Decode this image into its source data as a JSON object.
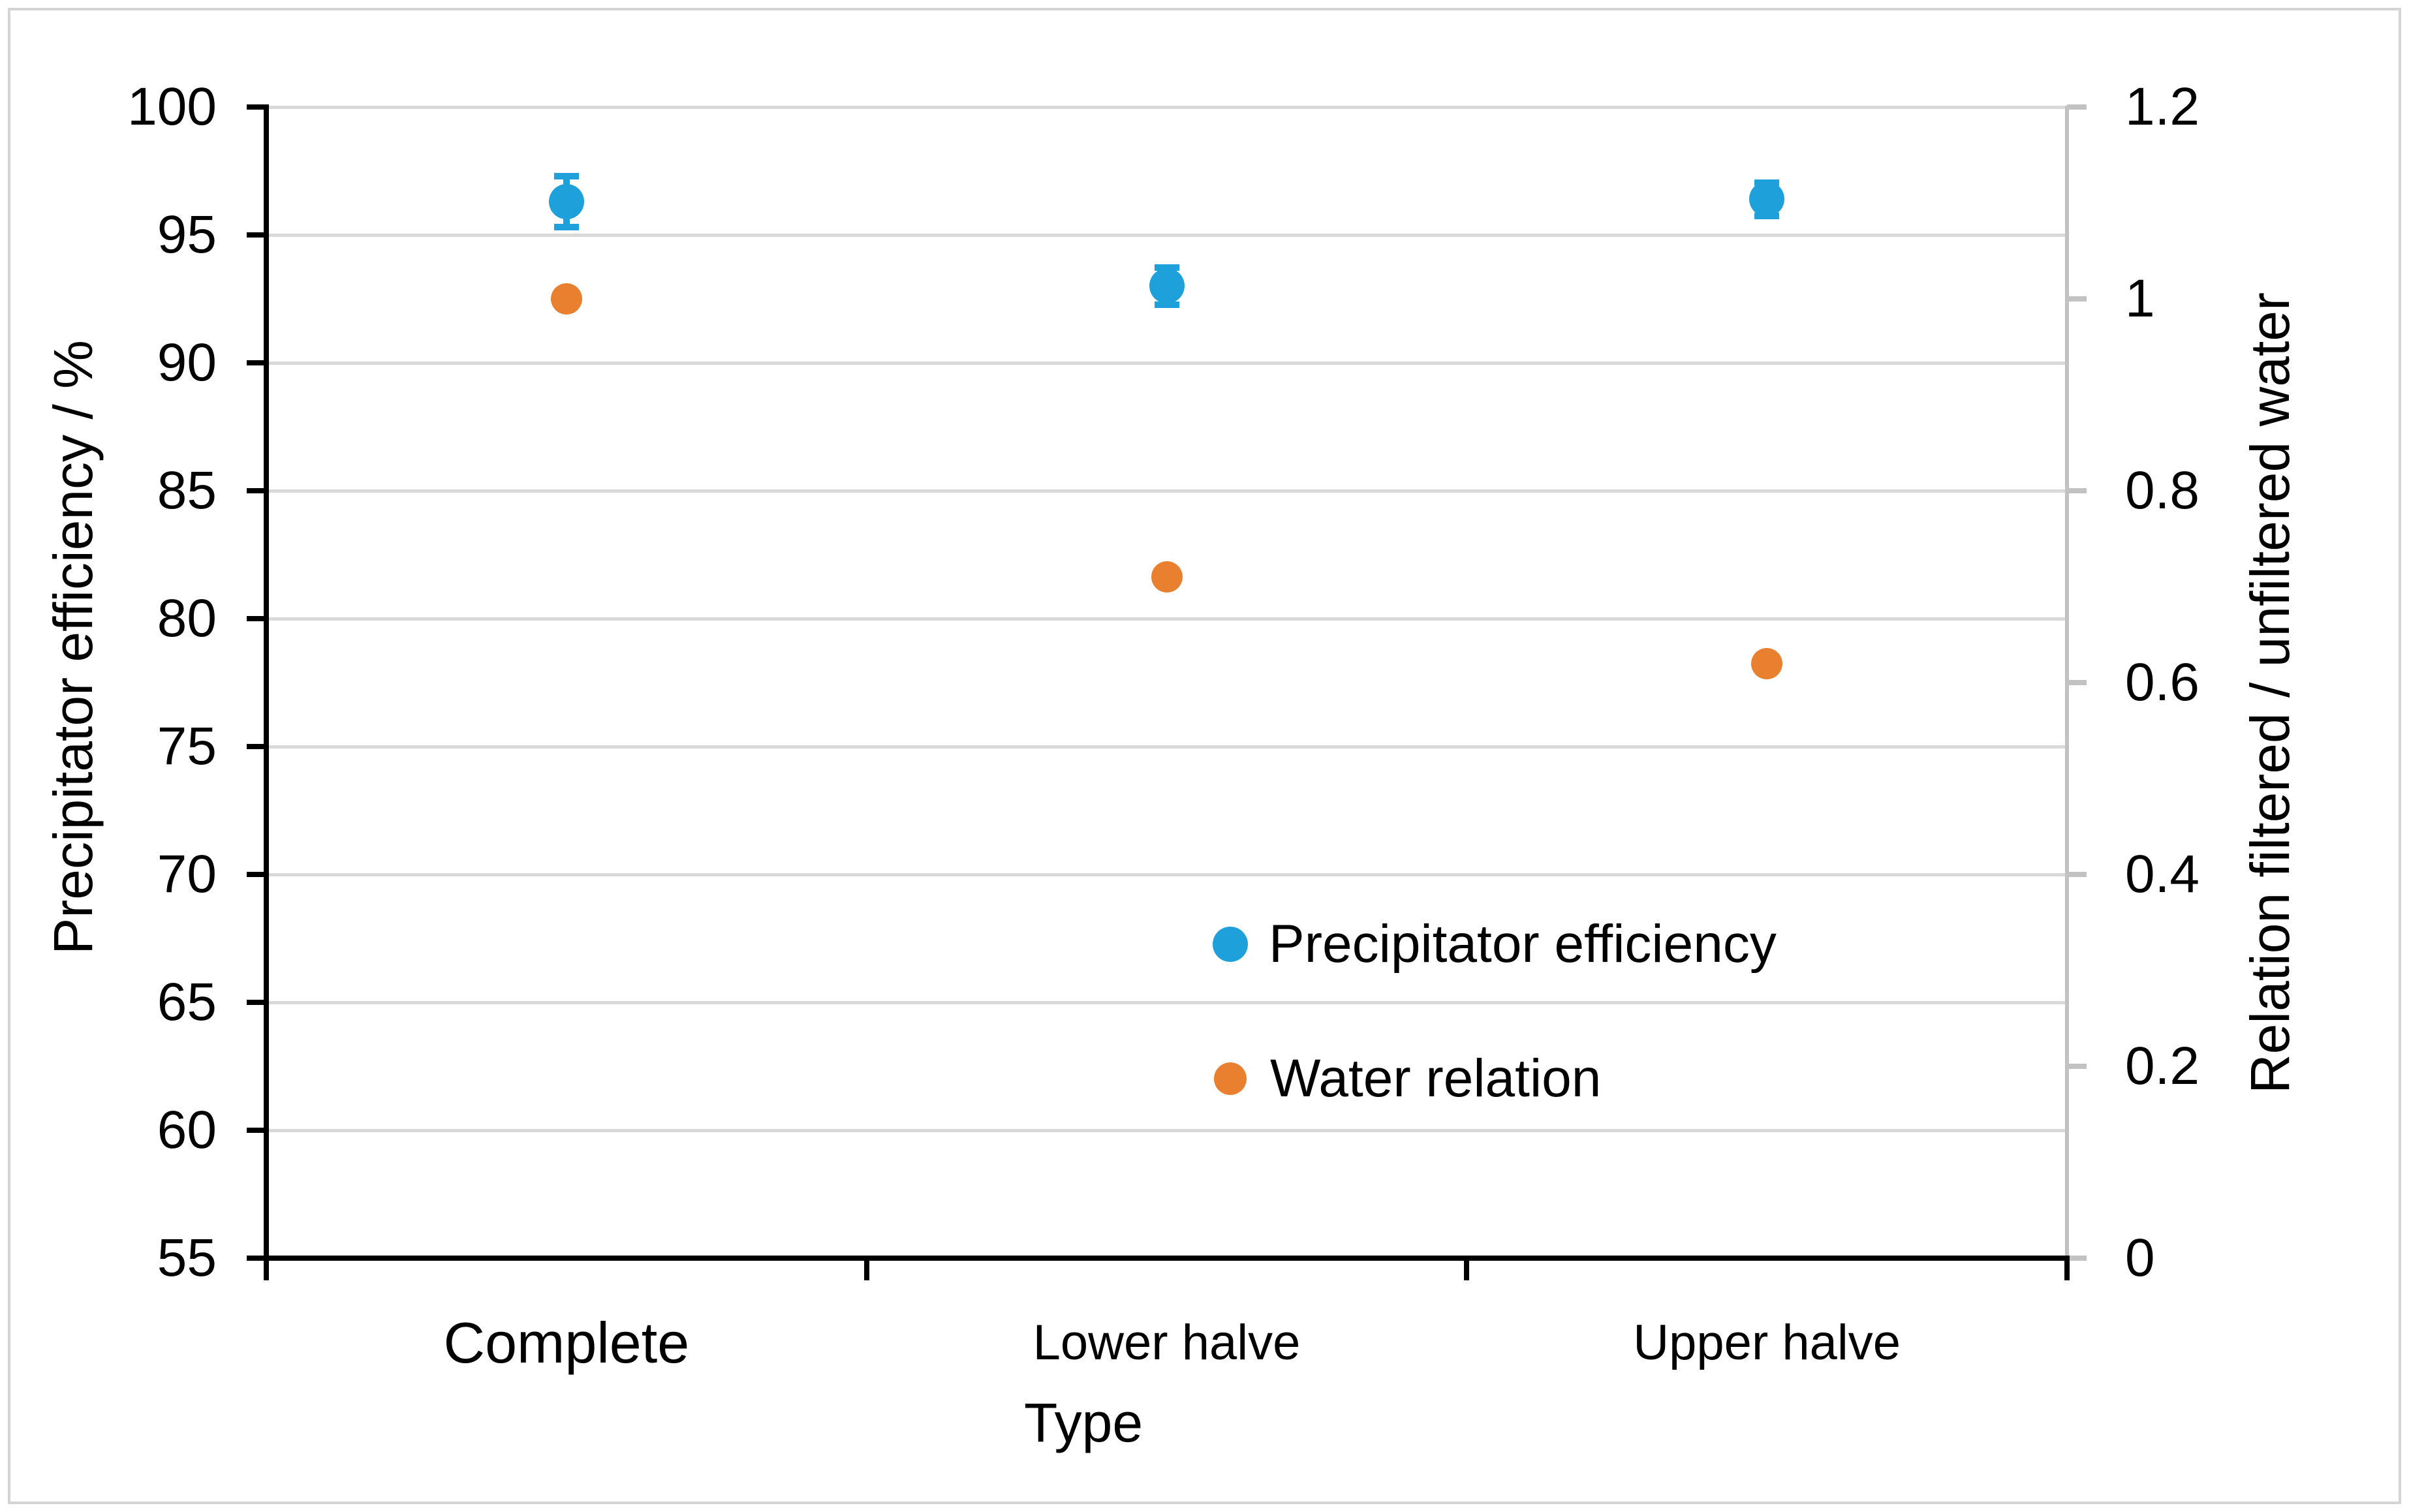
{
  "chart_data": {
    "type": "scatter",
    "title": "",
    "xlabel": "Type",
    "ylabel_left": "Precipitator efficiency  / %",
    "ylabel_right": "Relation  filtered / unfiltered water",
    "categories": [
      "Complete",
      "Lower halve",
      "Upper halve"
    ],
    "left_axis": {
      "min": 55,
      "max": 100,
      "step": 5,
      "tick_labels": [
        "100",
        "95",
        "90",
        "85",
        "80",
        "75",
        "70",
        "65",
        "60",
        "55"
      ],
      "tick_values": [
        100,
        95,
        90,
        85,
        80,
        75,
        70,
        65,
        60,
        55
      ]
    },
    "right_axis": {
      "min": 0,
      "max": 1.2,
      "step": 0.2,
      "tick_labels": [
        "1.2",
        "1",
        "0.8",
        "0.6",
        "0.4",
        "0.2",
        "0"
      ],
      "tick_values": [
        1.2,
        1,
        0.8,
        0.6,
        0.4,
        0.2,
        0
      ]
    },
    "series": [
      {
        "name": "Precipitator efficiency",
        "axis": "left",
        "color": "#1ea0db",
        "marker_diameter": 54,
        "values": [
          96.3,
          93.0,
          96.4
        ],
        "errors": [
          1.0,
          0.72,
          0.65
        ]
      },
      {
        "name": "Water relation",
        "axis": "right",
        "color": "#e8802f",
        "marker_diameter": 48,
        "values": [
          1.0,
          0.71,
          0.62
        ]
      }
    ],
    "grid": true,
    "legend_position": "inside-lower-middle"
  },
  "colors": {
    "gridline": "#d9d9d9",
    "axis": "#000000",
    "right_axis": "#c2c2c2",
    "frame_border": "#d4d4d4",
    "background": "#ffffff",
    "series_blue": "#1ea0db",
    "series_orange": "#e8802f"
  }
}
